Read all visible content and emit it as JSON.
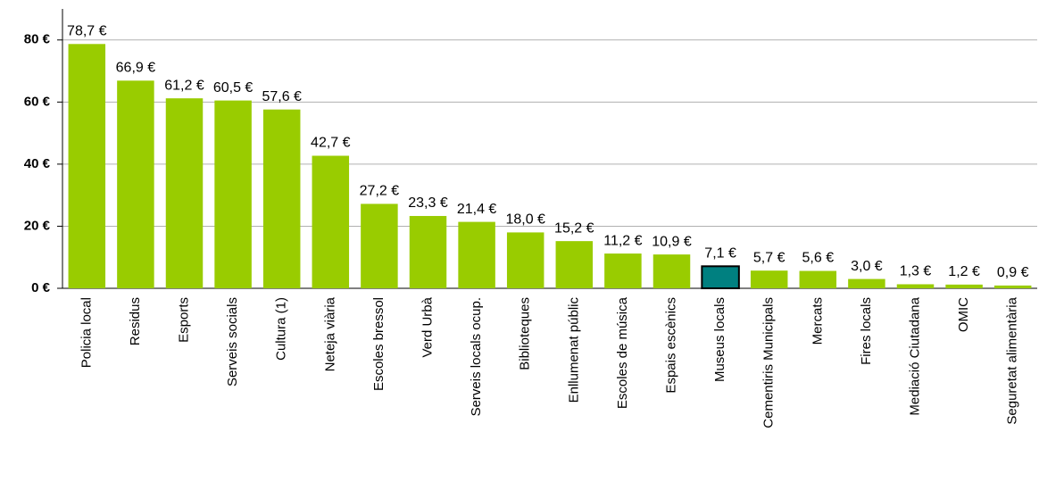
{
  "chart_data": {
    "type": "bar",
    "categories": [
      "Policia local",
      "Residus",
      "Esports",
      "Serveis socials",
      "Cultura (1)",
      "Neteja viària",
      "Escoles bressol",
      "Verd Urbà",
      "Serveis locals ocup.",
      "Biblioteques",
      "Enllumenat públic",
      "Escoles de música",
      "Espais escènics",
      "Museus locals",
      "Cementiris Municipals",
      "Mercats",
      "Fires locals",
      "Mediació Ciutadana",
      "OMIC",
      "Seguretat alimentària"
    ],
    "values": [
      78.7,
      66.9,
      61.2,
      60.5,
      57.6,
      42.7,
      27.2,
      23.3,
      21.4,
      18.0,
      15.2,
      11.2,
      10.9,
      7.1,
      5.7,
      5.6,
      3.0,
      1.3,
      1.2,
      0.9
    ],
    "value_labels": [
      "78,7 €",
      "66,9 €",
      "61,2 €",
      "60,5 €",
      "57,6 €",
      "42,7 €",
      "27,2 €",
      "23,3 €",
      "21,4 €",
      "18,0 €",
      "15,2 €",
      "11,2 €",
      "10,9 €",
      "7,1 €",
      "5,7 €",
      "5,6 €",
      "3,0 €",
      "1,3 €",
      "1,2 €",
      "0,9 €"
    ],
    "colors": [
      "#99cc00",
      "#99cc00",
      "#99cc00",
      "#99cc00",
      "#99cc00",
      "#99cc00",
      "#99cc00",
      "#99cc00",
      "#99cc00",
      "#99cc00",
      "#99cc00",
      "#99cc00",
      "#99cc00",
      "#008080",
      "#99cc00",
      "#99cc00",
      "#99cc00",
      "#99cc00",
      "#99cc00",
      "#99cc00"
    ],
    "ylim": [
      0,
      90
    ],
    "yticks": [
      {
        "value": 0,
        "label": "0 €"
      },
      {
        "value": 20,
        "label": "20 €"
      },
      {
        "value": 40,
        "label": "40 €"
      },
      {
        "value": 60,
        "label": "60 €"
      },
      {
        "value": 80,
        "label": "80 €"
      }
    ],
    "grid": true
  }
}
